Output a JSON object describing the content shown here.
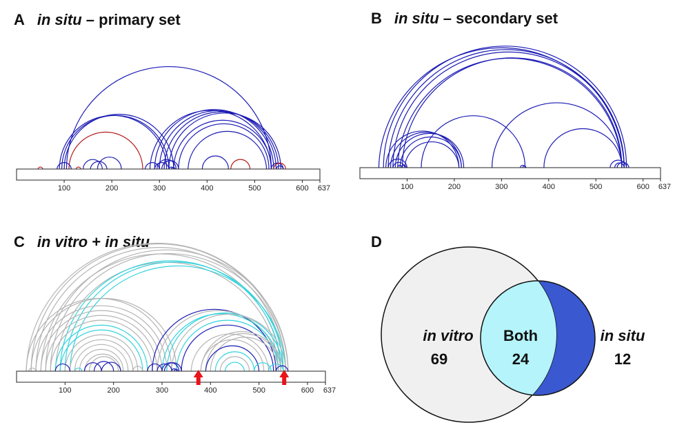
{
  "colors": {
    "blue": "#1a1ab4",
    "red": "#b31b1b",
    "gray": "#b4b4b4",
    "cyan": "#32d2dc",
    "venn_left": "#f0f0f0",
    "venn_both": "#b4f4fa",
    "venn_right": "#3a58cf"
  },
  "panels": {
    "A": {
      "letter": "A",
      "title_italic": "in situ",
      "title_rest": " – primary set"
    },
    "B": {
      "letter": "B",
      "title_italic": "in situ",
      "title_rest": " –  secondary set"
    },
    "C": {
      "letter": "C",
      "title_italic_1": "in vitro",
      "title_plus": " + ",
      "title_italic_2": "in situ"
    },
    "D": {
      "letter": "D"
    }
  },
  "axis_ticks": [
    "100",
    "200",
    "300",
    "400",
    "500",
    "600",
    "637"
  ],
  "axis_tick_values": [
    100,
    200,
    300,
    400,
    500,
    600,
    637
  ],
  "axis_max": 637,
  "arcs_A": [
    {
      "a": 105,
      "b": 535,
      "c": "blue"
    },
    {
      "a": 100,
      "b": 330,
      "c": "blue"
    },
    {
      "a": 95,
      "b": 320,
      "c": "blue"
    },
    {
      "a": 90,
      "b": 315,
      "c": "blue"
    },
    {
      "a": 110,
      "b": 265,
      "c": "red"
    },
    {
      "a": 280,
      "b": 535,
      "c": "blue"
    },
    {
      "a": 290,
      "b": 540,
      "c": "blue"
    },
    {
      "a": 300,
      "b": 545,
      "c": "blue"
    },
    {
      "a": 310,
      "b": 550,
      "c": "blue"
    },
    {
      "a": 320,
      "b": 555,
      "c": "blue"
    },
    {
      "a": 330,
      "b": 535,
      "c": "blue"
    },
    {
      "a": 340,
      "b": 530,
      "c": "blue"
    },
    {
      "a": 360,
      "b": 525,
      "c": "blue"
    },
    {
      "a": 85,
      "b": 115,
      "c": "blue"
    },
    {
      "a": 155,
      "b": 190,
      "c": "blue"
    },
    {
      "a": 170,
      "b": 220,
      "c": "blue"
    },
    {
      "a": 140,
      "b": 180,
      "c": "blue"
    },
    {
      "a": 290,
      "b": 320,
      "c": "blue"
    },
    {
      "a": 295,
      "b": 335,
      "c": "blue"
    },
    {
      "a": 305,
      "b": 340,
      "c": "blue"
    },
    {
      "a": 270,
      "b": 300,
      "c": "blue"
    },
    {
      "a": 390,
      "b": 445,
      "c": "blue"
    },
    {
      "a": 450,
      "b": 490,
      "c": "red"
    },
    {
      "a": 535,
      "b": 560,
      "c": "blue"
    },
    {
      "a": 540,
      "b": 565,
      "c": "red"
    },
    {
      "a": 545,
      "b": 560,
      "c": "blue"
    },
    {
      "a": 45,
      "b": 55,
      "c": "red"
    },
    {
      "a": 125,
      "b": 135,
      "c": "red"
    },
    {
      "a": 320,
      "b": 330,
      "c": "blue"
    },
    {
      "a": 325,
      "b": 333,
      "c": "blue"
    }
  ],
  "arcs_B": [
    {
      "a": 40,
      "b": 560,
      "c": "blue"
    },
    {
      "a": 50,
      "b": 565,
      "c": "blue"
    },
    {
      "a": 60,
      "b": 560,
      "c": "blue"
    },
    {
      "a": 70,
      "b": 560,
      "c": "blue"
    },
    {
      "a": 80,
      "b": 555,
      "c": "blue"
    },
    {
      "a": 90,
      "b": 555,
      "c": "blue"
    },
    {
      "a": 55,
      "b": 210,
      "c": "blue"
    },
    {
      "a": 65,
      "b": 215,
      "c": "blue"
    },
    {
      "a": 75,
      "b": 220,
      "c": "blue"
    },
    {
      "a": 85,
      "b": 215,
      "c": "blue"
    },
    {
      "a": 95,
      "b": 210,
      "c": "blue"
    },
    {
      "a": 60,
      "b": 100,
      "c": "blue"
    },
    {
      "a": 70,
      "b": 95,
      "c": "blue"
    },
    {
      "a": 130,
      "b": 350,
      "c": "blue"
    },
    {
      "a": 280,
      "b": 555,
      "c": "blue"
    },
    {
      "a": 390,
      "b": 555,
      "c": "blue"
    },
    {
      "a": 340,
      "b": 350,
      "c": "blue"
    },
    {
      "a": 345,
      "b": 352,
      "c": "blue"
    },
    {
      "a": 530,
      "b": 565,
      "c": "blue"
    },
    {
      "a": 540,
      "b": 560,
      "c": "blue"
    },
    {
      "a": 545,
      "b": 570,
      "c": "blue"
    },
    {
      "a": 80,
      "b": 90,
      "c": "blue"
    },
    {
      "a": 88,
      "b": 98,
      "c": "blue"
    }
  ],
  "arcs_C": [
    {
      "a": 20,
      "b": 560,
      "c": "gray"
    },
    {
      "a": 30,
      "b": 555,
      "c": "gray"
    },
    {
      "a": 40,
      "b": 550,
      "c": "gray"
    },
    {
      "a": 50,
      "b": 545,
      "c": "gray"
    },
    {
      "a": 60,
      "b": 560,
      "c": "gray"
    },
    {
      "a": 70,
      "b": 555,
      "c": "gray"
    },
    {
      "a": 80,
      "b": 540,
      "c": "gray"
    },
    {
      "a": 90,
      "b": 545,
      "c": "cyan"
    },
    {
      "a": 100,
      "b": 550,
      "c": "cyan"
    },
    {
      "a": 110,
      "b": 555,
      "c": "cyan"
    },
    {
      "a": 20,
      "b": 320,
      "c": "gray"
    },
    {
      "a": 30,
      "b": 330,
      "c": "gray"
    },
    {
      "a": 40,
      "b": 310,
      "c": "gray"
    },
    {
      "a": 50,
      "b": 300,
      "c": "gray"
    },
    {
      "a": 60,
      "b": 290,
      "c": "gray"
    },
    {
      "a": 70,
      "b": 280,
      "c": "gray"
    },
    {
      "a": 80,
      "b": 270,
      "c": "cyan"
    },
    {
      "a": 90,
      "b": 260,
      "c": "cyan"
    },
    {
      "a": 100,
      "b": 250,
      "c": "gray"
    },
    {
      "a": 110,
      "b": 240,
      "c": "gray"
    },
    {
      "a": 120,
      "b": 230,
      "c": "gray"
    },
    {
      "a": 130,
      "b": 220,
      "c": "gray"
    },
    {
      "a": 140,
      "b": 215,
      "c": "gray"
    },
    {
      "a": 150,
      "b": 210,
      "c": "gray"
    },
    {
      "a": 280,
      "b": 535,
      "c": "blue"
    },
    {
      "a": 290,
      "b": 540,
      "c": "gray"
    },
    {
      "a": 300,
      "b": 545,
      "c": "cyan"
    },
    {
      "a": 310,
      "b": 550,
      "c": "cyan"
    },
    {
      "a": 320,
      "b": 555,
      "c": "gray"
    },
    {
      "a": 330,
      "b": 540,
      "c": "cyan"
    },
    {
      "a": 340,
      "b": 530,
      "c": "blue"
    },
    {
      "a": 360,
      "b": 520,
      "c": "gray"
    },
    {
      "a": 380,
      "b": 510,
      "c": "gray"
    },
    {
      "a": 380,
      "b": 550,
      "c": "gray"
    },
    {
      "a": 390,
      "b": 545,
      "c": "gray"
    },
    {
      "a": 400,
      "b": 540,
      "c": "gray"
    },
    {
      "a": 390,
      "b": 500,
      "c": "blue"
    },
    {
      "a": 410,
      "b": 490,
      "c": "cyan"
    },
    {
      "a": 420,
      "b": 480,
      "c": "gray"
    },
    {
      "a": 80,
      "b": 110,
      "c": "blue"
    },
    {
      "a": 140,
      "b": 175,
      "c": "blue"
    },
    {
      "a": 160,
      "b": 200,
      "c": "blue"
    },
    {
      "a": 175,
      "b": 215,
      "c": "blue"
    },
    {
      "a": 120,
      "b": 135,
      "c": "cyan"
    },
    {
      "a": 270,
      "b": 300,
      "c": "blue"
    },
    {
      "a": 290,
      "b": 320,
      "c": "blue"
    },
    {
      "a": 300,
      "b": 335,
      "c": "blue"
    },
    {
      "a": 305,
      "b": 340,
      "c": "blue"
    },
    {
      "a": 320,
      "b": 330,
      "c": "blue"
    },
    {
      "a": 325,
      "b": 333,
      "c": "blue"
    },
    {
      "a": 430,
      "b": 470,
      "c": "cyan"
    },
    {
      "a": 490,
      "b": 525,
      "c": "cyan"
    },
    {
      "a": 520,
      "b": 550,
      "c": "cyan"
    },
    {
      "a": 535,
      "b": 560,
      "c": "blue"
    },
    {
      "a": 25,
      "b": 40,
      "c": "gray"
    },
    {
      "a": 240,
      "b": 260,
      "c": "gray"
    }
  ],
  "arrows_C": [
    375,
    552
  ],
  "venn": {
    "left_label": "in vitro",
    "left_value": "69",
    "both_label": "Both",
    "both_value": "24",
    "right_label": "in situ",
    "right_value": "12"
  }
}
